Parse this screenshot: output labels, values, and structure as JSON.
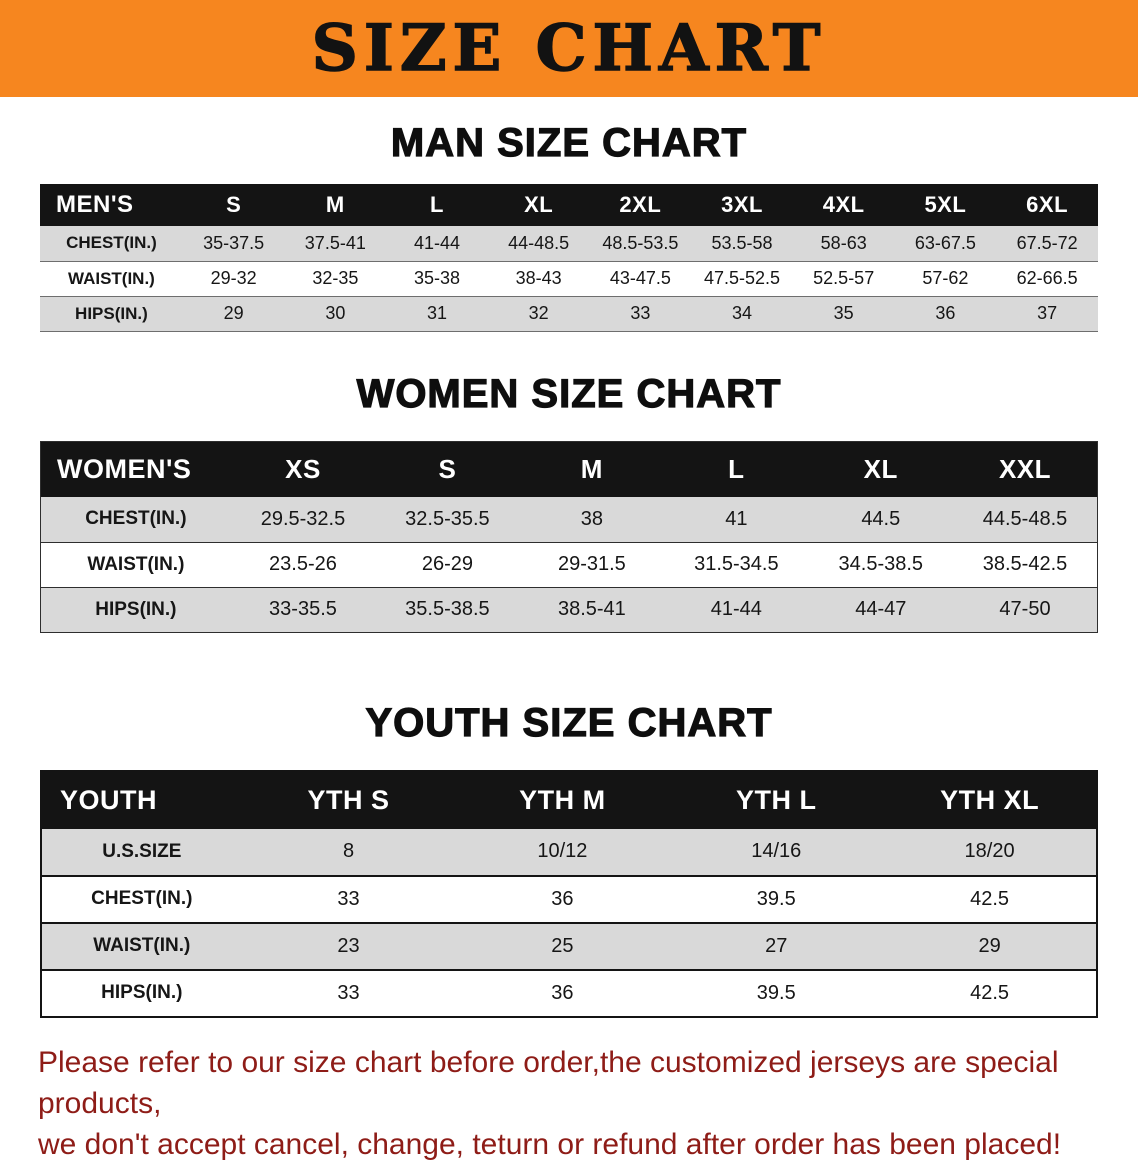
{
  "banner": {
    "title": "SIZE CHART"
  },
  "colors": {
    "banner_bg": "#f6861f",
    "header_bg": "#141414",
    "stripe": "#d9d9d9",
    "footer_text": "#8e1c17"
  },
  "chart_data": [
    {
      "type": "table",
      "title": "MAN SIZE CHART",
      "columns": [
        "MEN'S",
        "S",
        "M",
        "L",
        "XL",
        "2XL",
        "3XL",
        "4XL",
        "5XL",
        "6XL"
      ],
      "rows": [
        [
          "CHEST(IN.)",
          "35-37.5",
          "37.5-41",
          "41-44",
          "44-48.5",
          "48.5-53.5",
          "53.5-58",
          "58-63",
          "63-67.5",
          "67.5-72"
        ],
        [
          "WAIST(IN.)",
          "29-32",
          "32-35",
          "35-38",
          "38-43",
          "43-47.5",
          "47.5-52.5",
          "52.5-57",
          "57-62",
          "62-66.5"
        ],
        [
          "HIPS(IN.)",
          "29",
          "30",
          "31",
          "32",
          "33",
          "34",
          "35",
          "36",
          "37"
        ]
      ]
    },
    {
      "type": "table",
      "title": "WOMEN SIZE CHART",
      "columns": [
        "WOMEN'S",
        "XS",
        "S",
        "M",
        "L",
        "XL",
        "XXL"
      ],
      "rows": [
        [
          "CHEST(IN.)",
          "29.5-32.5",
          "32.5-35.5",
          "38",
          "41",
          "44.5",
          "44.5-48.5"
        ],
        [
          "WAIST(IN.)",
          "23.5-26",
          "26-29",
          "29-31.5",
          "31.5-34.5",
          "34.5-38.5",
          "38.5-42.5"
        ],
        [
          "HIPS(IN.)",
          "33-35.5",
          "35.5-38.5",
          "38.5-41",
          "41-44",
          "44-47",
          "47-50"
        ]
      ]
    },
    {
      "type": "table",
      "title": "YOUTH SIZE CHART",
      "columns": [
        "YOUTH",
        "YTH S",
        "YTH M",
        "YTH L",
        "YTH XL"
      ],
      "rows": [
        [
          "U.S.SIZE",
          "8",
          "10/12",
          "14/16",
          "18/20"
        ],
        [
          "CHEST(IN.)",
          "33",
          "36",
          "39.5",
          "42.5"
        ],
        [
          "WAIST(IN.)",
          "23",
          "25",
          "27",
          "29"
        ],
        [
          "HIPS(IN.)",
          "33",
          "36",
          "39.5",
          "42.5"
        ]
      ]
    }
  ],
  "footer": {
    "lines": [
      "Please refer to our size chart before order,the customized jerseys are special products,",
      "we don't accept cancel, change, teturn or refund after order has been placed!"
    ]
  }
}
